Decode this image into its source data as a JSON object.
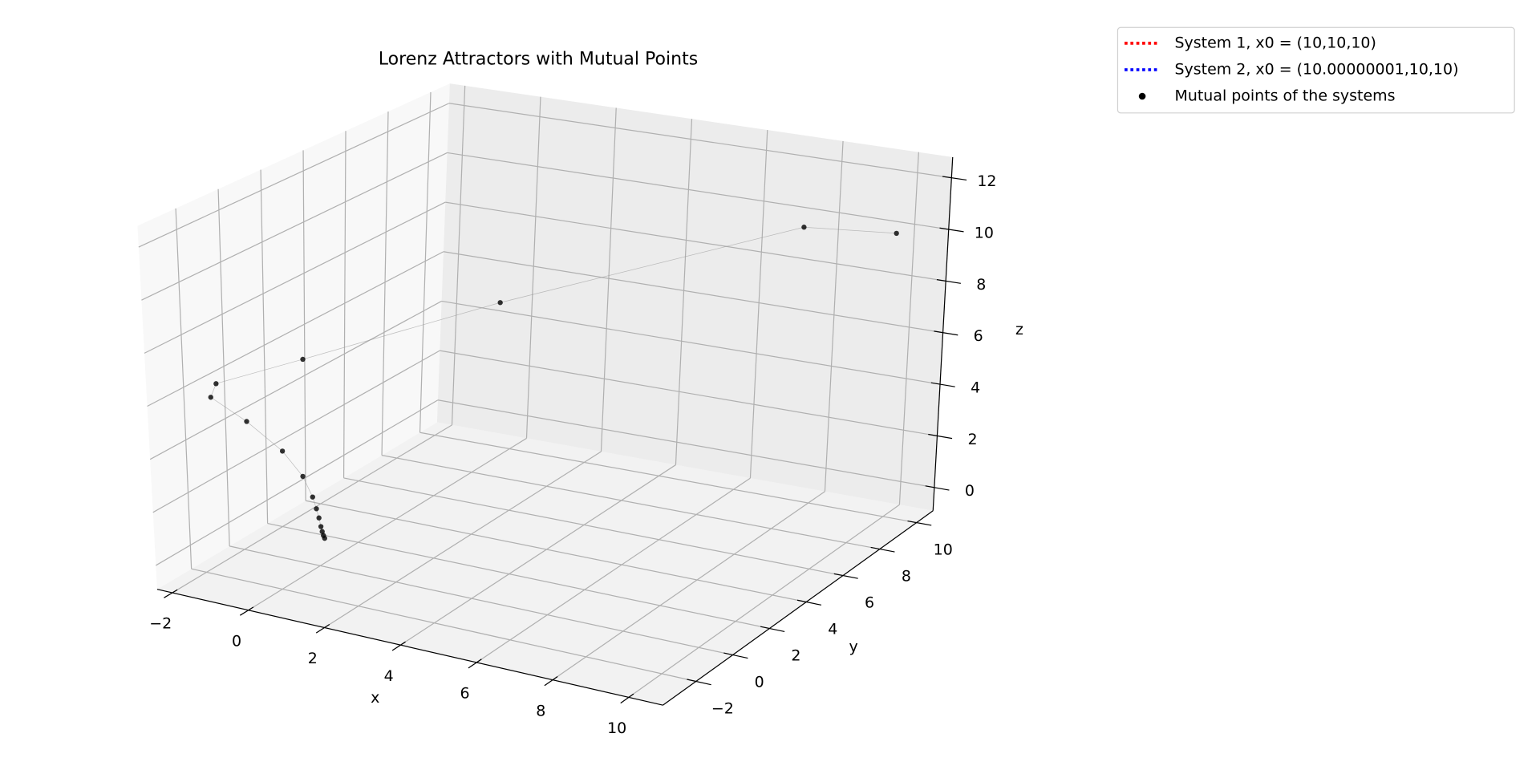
{
  "chart_data": {
    "type": "scatter3d",
    "title": "Lorenz Attractors with Mutual Points",
    "xlabel": "x",
    "ylabel": "y",
    "zlabel": "z",
    "xlim": [
      -2.4,
      10.9
    ],
    "ylim": [
      -3.8,
      10.9
    ],
    "zlim": [
      -0.9,
      12.8
    ],
    "xticks": [
      {
        "value": -2,
        "label": "−2"
      },
      0,
      2,
      4,
      6,
      8,
      10
    ],
    "yticks": [
      {
        "value": -2,
        "label": "−2"
      },
      0,
      2,
      4,
      6,
      8,
      10
    ],
    "zticks": [
      0,
      2,
      4,
      6,
      8,
      10,
      12
    ],
    "grid": true,
    "legend": "upper right",
    "series": [
      {
        "name": "System 1, x0 = (10,10,10)",
        "color": "#ff0000",
        "linestyle": "dotted"
      },
      {
        "name": "System 2, x0 = (10.00000001,10,10)",
        "color": "#0000ff",
        "linestyle": "dotted"
      },
      {
        "name": "Mutual points of the systems",
        "color": "#000000",
        "marker": "o",
        "x": [
          10,
          8.4,
          3.2,
          -0.2,
          -1.7,
          -1.8,
          -1.2,
          -0.6,
          -0.26,
          -0.1,
          -0.04,
          0,
          0.03,
          0.05,
          0.07,
          0.09
        ],
        "y": [
          10,
          8.4,
          3.2,
          -0.2,
          -1.7,
          -1.8,
          -1.2,
          -0.6,
          -0.26,
          -0.1,
          -0.04,
          0,
          0.03,
          0.05,
          0.07,
          0.09
        ],
        "z": [
          10,
          10.5,
          8.5,
          6.9,
          6.2,
          5.7,
          4.7,
          3.5,
          2.5,
          1.7,
          1.25,
          0.9,
          0.57,
          0.38,
          0.23,
          0.12
        ]
      }
    ]
  }
}
